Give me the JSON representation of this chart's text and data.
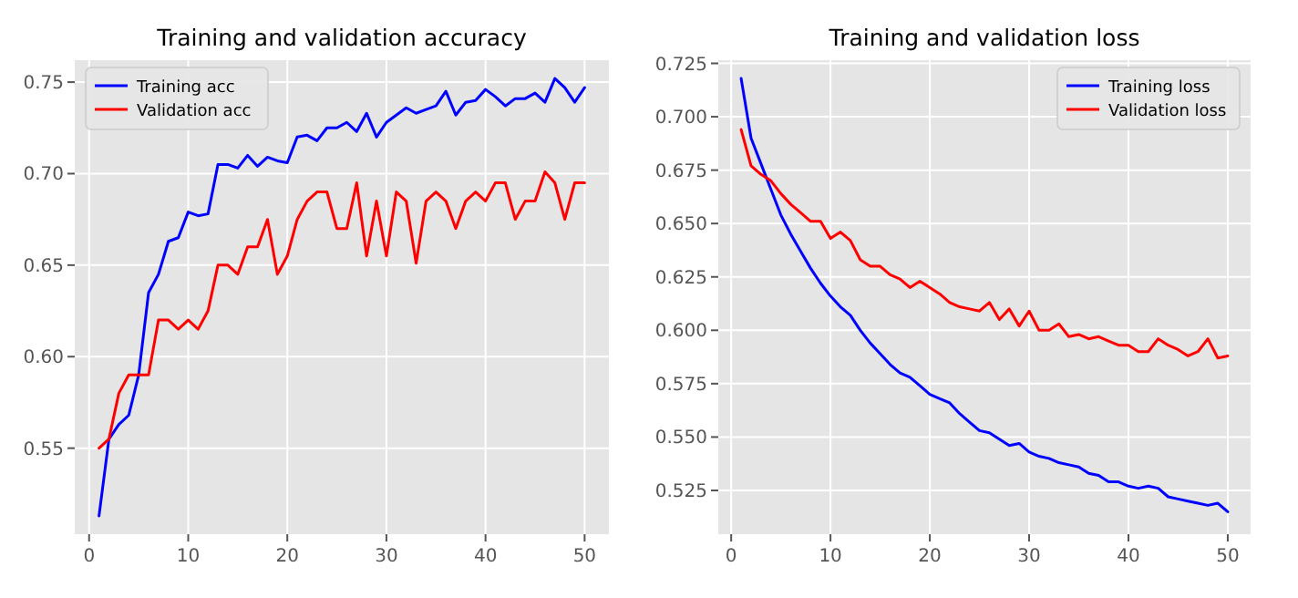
{
  "chart_data": [
    {
      "type": "line",
      "title": "Training and validation accuracy",
      "x": [
        1,
        2,
        3,
        4,
        5,
        6,
        7,
        8,
        9,
        10,
        11,
        12,
        13,
        14,
        15,
        16,
        17,
        18,
        19,
        20,
        21,
        22,
        23,
        24,
        25,
        26,
        27,
        28,
        29,
        30,
        31,
        32,
        33,
        34,
        35,
        36,
        37,
        38,
        39,
        40,
        41,
        42,
        43,
        44,
        45,
        46,
        47,
        48,
        49,
        50
      ],
      "xlim": [
        -1.45,
        52.45
      ],
      "ylim": [
        0.503,
        0.762
      ],
      "xticks": [
        0,
        10,
        20,
        30,
        40,
        50
      ],
      "yticks": [
        {
          "value": 0.55,
          "label": "0.55"
        },
        {
          "value": 0.6,
          "label": "0.60"
        },
        {
          "value": 0.65,
          "label": "0.65"
        },
        {
          "value": 0.7,
          "label": "0.70"
        },
        {
          "value": 0.75,
          "label": "0.75"
        }
      ],
      "grid": true,
      "legend": "top left",
      "series": [
        {
          "name": "Training acc",
          "color": "#0000ff",
          "values": [
            0.513,
            0.555,
            0.563,
            0.568,
            0.59,
            0.635,
            0.645,
            0.663,
            0.665,
            0.679,
            0.677,
            0.678,
            0.705,
            0.705,
            0.703,
            0.71,
            0.704,
            0.709,
            0.707,
            0.706,
            0.72,
            0.721,
            0.718,
            0.725,
            0.725,
            0.728,
            0.723,
            0.733,
            0.72,
            0.728,
            0.732,
            0.736,
            0.733,
            0.735,
            0.737,
            0.745,
            0.732,
            0.739,
            0.74,
            0.746,
            0.742,
            0.737,
            0.741,
            0.741,
            0.744,
            0.739,
            0.752,
            0.747,
            0.739,
            0.747
          ]
        },
        {
          "name": "Validation acc",
          "color": "#ff0000",
          "values": [
            0.55,
            0.555,
            0.58,
            0.59,
            0.59,
            0.59,
            0.62,
            0.62,
            0.615,
            0.62,
            0.615,
            0.625,
            0.65,
            0.65,
            0.645,
            0.66,
            0.66,
            0.675,
            0.645,
            0.655,
            0.675,
            0.685,
            0.69,
            0.69,
            0.67,
            0.67,
            0.695,
            0.655,
            0.685,
            0.655,
            0.69,
            0.685,
            0.651,
            0.685,
            0.69,
            0.685,
            0.67,
            0.685,
            0.69,
            0.685,
            0.695,
            0.695,
            0.675,
            0.685,
            0.685,
            0.701,
            0.695,
            0.675,
            0.695,
            0.695
          ]
        }
      ]
    },
    {
      "type": "line",
      "title": "Training and validation loss",
      "x": [
        1,
        2,
        3,
        4,
        5,
        6,
        7,
        8,
        9,
        10,
        11,
        12,
        13,
        14,
        15,
        16,
        17,
        18,
        19,
        20,
        21,
        22,
        23,
        24,
        25,
        26,
        27,
        28,
        29,
        30,
        31,
        32,
        33,
        34,
        35,
        36,
        37,
        38,
        39,
        40,
        41,
        42,
        43,
        44,
        45,
        46,
        47,
        48,
        49,
        50
      ],
      "xlim": [
        -1.3,
        52.3
      ],
      "ylim": [
        0.5045,
        0.7265
      ],
      "xticks": [
        0,
        10,
        20,
        30,
        40,
        50
      ],
      "yticks": [
        {
          "value": 0.525,
          "label": "0.525"
        },
        {
          "value": 0.55,
          "label": "0.550"
        },
        {
          "value": 0.575,
          "label": "0.575"
        },
        {
          "value": 0.6,
          "label": "0.600"
        },
        {
          "value": 0.625,
          "label": "0.625"
        },
        {
          "value": 0.65,
          "label": "0.650"
        },
        {
          "value": 0.675,
          "label": "0.675"
        },
        {
          "value": 0.7,
          "label": "0.700"
        },
        {
          "value": 0.725,
          "label": "0.725"
        }
      ],
      "grid": true,
      "legend": "top right",
      "series": [
        {
          "name": "Training loss",
          "color": "#0000ff",
          "values": [
            0.718,
            0.69,
            0.678,
            0.666,
            0.654,
            0.645,
            0.637,
            0.629,
            0.622,
            0.616,
            0.611,
            0.607,
            0.6,
            0.594,
            0.589,
            0.584,
            0.58,
            0.578,
            0.574,
            0.57,
            0.568,
            0.566,
            0.561,
            0.557,
            0.553,
            0.552,
            0.549,
            0.546,
            0.547,
            0.543,
            0.541,
            0.54,
            0.538,
            0.537,
            0.536,
            0.533,
            0.532,
            0.529,
            0.529,
            0.527,
            0.526,
            0.527,
            0.526,
            0.522,
            0.521,
            0.52,
            0.519,
            0.518,
            0.519,
            0.515
          ]
        },
        {
          "name": "Validation loss",
          "color": "#ff0000",
          "values": [
            0.694,
            0.677,
            0.673,
            0.67,
            0.664,
            0.659,
            0.655,
            0.651,
            0.651,
            0.643,
            0.646,
            0.642,
            0.633,
            0.63,
            0.63,
            0.626,
            0.624,
            0.62,
            0.623,
            0.62,
            0.617,
            0.613,
            0.611,
            0.61,
            0.609,
            0.613,
            0.605,
            0.61,
            0.602,
            0.609,
            0.6,
            0.6,
            0.603,
            0.597,
            0.598,
            0.596,
            0.597,
            0.595,
            0.593,
            0.593,
            0.59,
            0.59,
            0.596,
            0.593,
            0.591,
            0.588,
            0.59,
            0.596,
            0.587,
            0.588
          ]
        }
      ]
    }
  ]
}
